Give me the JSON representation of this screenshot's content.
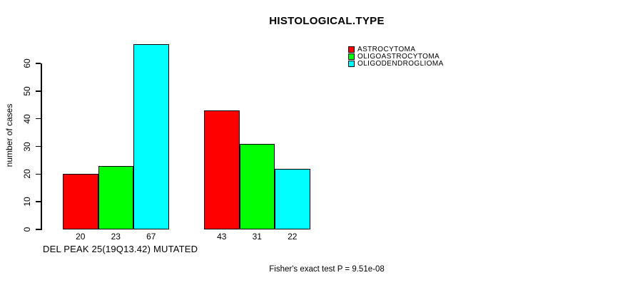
{
  "colors": {
    "background": "#FFFFFF",
    "astrocytoma": "#FF0000",
    "oligoastrocytoma": "#00FF00",
    "oligodendroglioma": "#00FFFF",
    "axis": "#000000"
  },
  "chart_data": {
    "type": "bar",
    "title": "HISTOLOGICAL.TYPE",
    "ylabel": "number of cases",
    "xlabel": "DEL PEAK 25(19Q13.42) MUTATED",
    "annotation": "Fisher's exact test P = 9.51e-08",
    "ylim": [
      0,
      60
    ],
    "yticks": [
      0,
      10,
      20,
      30,
      40,
      50,
      60
    ],
    "grid": false,
    "legend_position": "right",
    "groups": [
      "group-1",
      "group-2"
    ],
    "series": [
      {
        "name": "ASTROCYTOMA",
        "color": "#FF0000",
        "values": [
          20,
          43
        ]
      },
      {
        "name": "OLIGOASTROCYTOMA",
        "color": "#00FF00",
        "values": [
          23,
          31
        ]
      },
      {
        "name": "OLIGODENDROGLIOMA",
        "color": "#00FFFF",
        "values": [
          67,
          22
        ]
      }
    ],
    "bar_value_labels": [
      [
        "20",
        "23",
        "67"
      ],
      [
        "43",
        "31",
        "22"
      ]
    ]
  }
}
